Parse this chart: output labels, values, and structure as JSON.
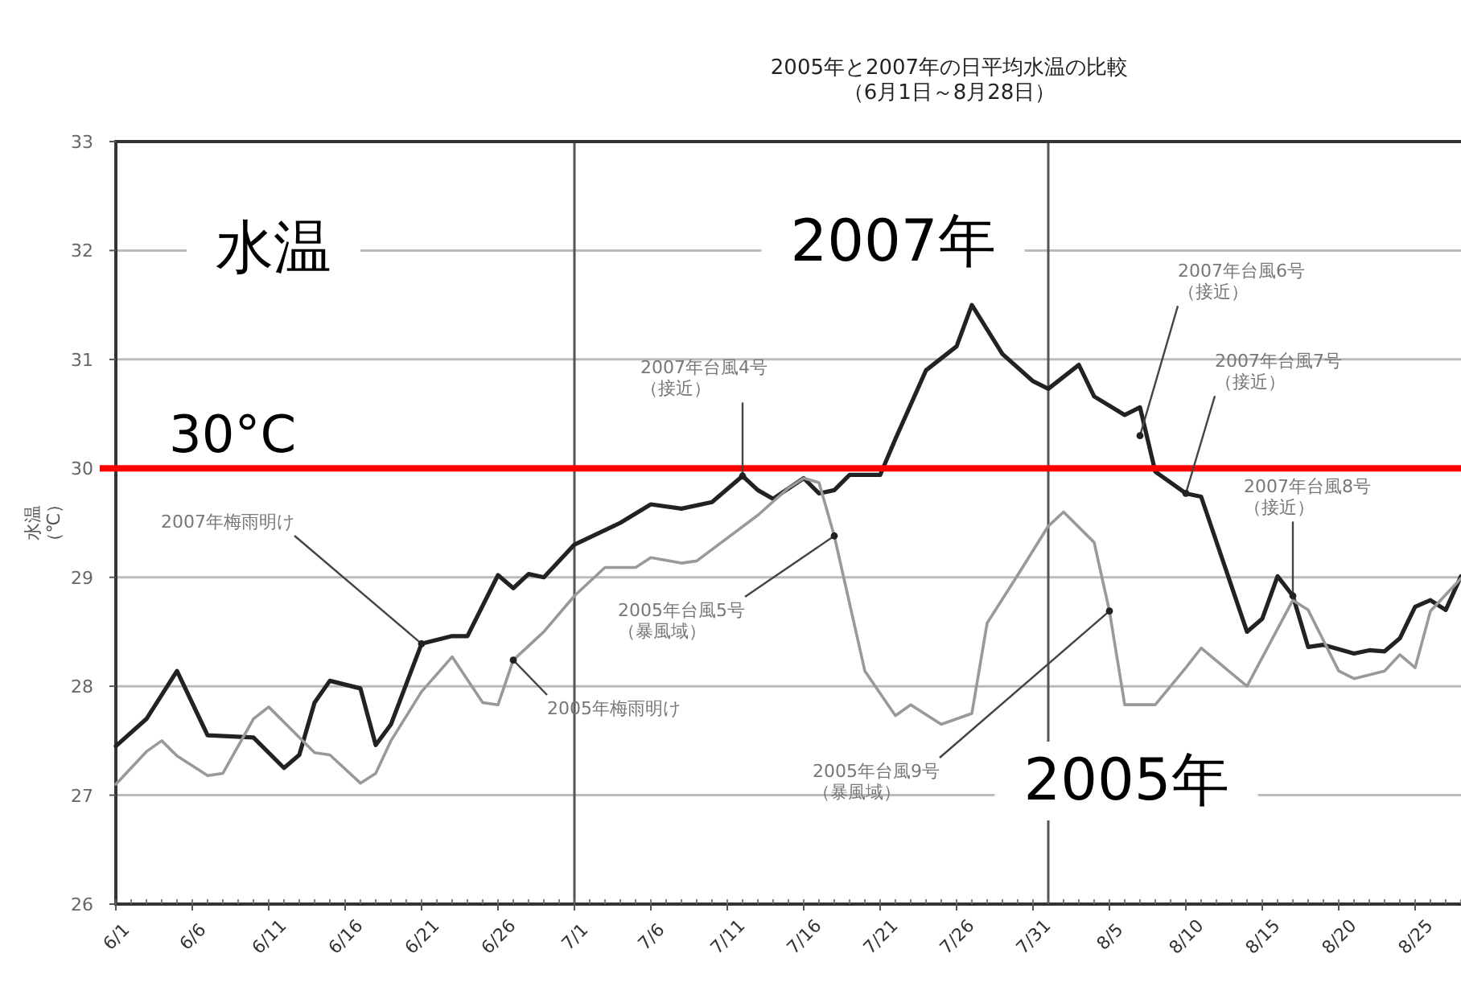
{
  "chart_data": {
    "type": "line",
    "title": "2005年と2007年の日平均水温の比較（6月1日～8月28日）",
    "ylabel": "水温（℃）",
    "ylim": [
      26,
      33
    ],
    "yticks": [
      26,
      27,
      28,
      29,
      30,
      31,
      32,
      33
    ],
    "xlim": [
      "--06-01",
      "--08-28"
    ],
    "xticks": [
      {
        "value": "--06-01",
        "label": "6/1"
      },
      {
        "value": "--06-06",
        "label": "6/6"
      },
      {
        "value": "--06-11",
        "label": "6/11"
      },
      {
        "value": "--06-16",
        "label": "6/16"
      },
      {
        "value": "--06-21",
        "label": "6/21"
      },
      {
        "value": "--06-26",
        "label": "6/26"
      },
      {
        "value": "--07-01",
        "label": "7/1"
      },
      {
        "value": "--07-06",
        "label": "7/6"
      },
      {
        "value": "--07-11",
        "label": "7/11"
      },
      {
        "value": "--07-16",
        "label": "7/16"
      },
      {
        "value": "--07-21",
        "label": "7/21"
      },
      {
        "value": "--07-26",
        "label": "7/26"
      },
      {
        "value": "--07-31",
        "label": "7/31"
      },
      {
        "value": "--08-05",
        "label": "8/5"
      },
      {
        "value": "--08-10",
        "label": "8/10"
      },
      {
        "value": "--08-15",
        "label": "8/15"
      },
      {
        "value": "--08-20",
        "label": "8/20"
      },
      {
        "value": "--08-25",
        "label": "8/25"
      }
    ],
    "grid": "y",
    "series": [
      {
        "name": "2007年",
        "color": "#222222",
        "x": [
          "--06-01",
          "--06-03",
          "--06-05",
          "--06-07",
          "--06-10",
          "--06-12",
          "--06-13",
          "--06-14",
          "--06-15",
          "--06-17",
          "--06-18",
          "--06-19",
          "--06-21",
          "--06-23",
          "--06-24",
          "--06-26",
          "--06-27",
          "--06-28",
          "--06-29",
          "--07-01",
          "--07-04",
          "--07-06",
          "--07-08",
          "--07-10",
          "--07-12",
          "--07-13",
          "--07-14",
          "--07-16",
          "--07-17",
          "--07-18",
          "--07-19",
          "--07-21",
          "--07-22",
          "--07-24",
          "--07-26",
          "--07-27",
          "--07-29",
          "--07-31",
          "--08-01",
          "--08-03",
          "--08-04",
          "--08-06",
          "--08-07",
          "--08-08",
          "--08-10",
          "--08-11",
          "--08-14",
          "--08-15",
          "--08-16",
          "--08-17",
          "--08-18",
          "--08-19",
          "--08-21",
          "--08-22",
          "--08-23",
          "--08-24",
          "--08-25",
          "--08-26",
          "--08-27",
          "--08-28"
        ],
        "values": [
          27.45,
          27.7,
          28.14,
          27.55,
          27.53,
          27.25,
          27.37,
          27.85,
          28.05,
          27.98,
          27.46,
          27.65,
          28.39,
          28.46,
          28.46,
          29.02,
          28.9,
          29.03,
          29.0,
          29.3,
          29.5,
          29.67,
          29.63,
          29.69,
          29.93,
          29.8,
          29.72,
          29.91,
          29.77,
          29.8,
          29.94,
          29.94,
          30.27,
          30.9,
          31.12,
          31.5,
          31.05,
          30.8,
          30.73,
          30.95,
          30.66,
          30.49,
          30.56,
          29.97,
          29.77,
          29.74,
          28.5,
          28.62,
          29.01,
          28.83,
          28.36,
          28.38,
          28.3,
          28.33,
          28.32,
          28.44,
          28.73,
          28.79,
          28.7,
          29.01
        ]
      },
      {
        "name": "2005年",
        "color": "#999999",
        "x": [
          "--06-01",
          "--06-03",
          "--06-04",
          "--06-05",
          "--06-07",
          "--06-08",
          "--06-10",
          "--06-11",
          "--06-14",
          "--06-15",
          "--06-17",
          "--06-18",
          "--06-19",
          "--06-21",
          "--06-23",
          "--06-25",
          "--06-26",
          "--06-27",
          "--06-29",
          "--07-01",
          "--07-03",
          "--07-05",
          "--07-06",
          "--07-08",
          "--07-09",
          "--07-13",
          "--07-15",
          "--07-16",
          "--07-17",
          "--07-18",
          "--07-20",
          "--07-22",
          "--07-23",
          "--07-25",
          "--07-27",
          "--07-28",
          "--07-30",
          "--08-01",
          "--08-02",
          "--08-04",
          "--08-05",
          "--08-06",
          "--08-08",
          "--08-10",
          "--08-11",
          "--08-14",
          "--08-17",
          "--08-18",
          "--08-20",
          "--08-21",
          "--08-23",
          "--08-24",
          "--08-25",
          "--08-26",
          "--08-28"
        ],
        "values": [
          27.1,
          27.4,
          27.5,
          27.36,
          27.18,
          27.2,
          27.7,
          27.81,
          27.39,
          27.37,
          27.11,
          27.2,
          27.5,
          27.95,
          28.27,
          27.85,
          27.83,
          28.24,
          28.5,
          28.83,
          29.09,
          29.09,
          29.18,
          29.13,
          29.15,
          29.57,
          29.82,
          29.91,
          29.87,
          29.38,
          28.14,
          27.73,
          27.83,
          27.65,
          27.75,
          28.58,
          29.02,
          29.47,
          29.6,
          29.32,
          28.69,
          27.83,
          27.83,
          28.17,
          28.35,
          28.0,
          28.79,
          28.7,
          28.14,
          28.07,
          28.14,
          28.29,
          28.17,
          28.69,
          28.99
        ]
      }
    ],
    "ref_lines": [
      {
        "axis": "y",
        "value": 30,
        "label": "30°C",
        "color": "#ff0000"
      },
      {
        "axis": "x",
        "value": "--07-01",
        "color": "#555555"
      },
      {
        "axis": "x",
        "value": "--08-01",
        "color": "#555555"
      }
    ],
    "annotations": [
      "水温",
      {
        "text": "2007年梅雨明け",
        "x": "--06-21",
        "y": 28.39
      },
      {
        "text": "2005年梅雨明け",
        "x": "--06-27",
        "y": 28.24
      },
      {
        "text": "2007年台風4号（接近）",
        "x": "--07-12",
        "y": 29.93
      },
      {
        "text": "2005年台風5号（暴風域）",
        "x": "--07-18",
        "y": 29.38
      },
      {
        "text": "2005年台風9号（暴風域）",
        "x": "--08-05",
        "y": 28.69
      },
      {
        "text": "2007年台風6号（接近）",
        "x": "--08-07",
        "y": 30.3
      },
      {
        "text": "2007年台風7号（接近）",
        "x": "--08-10",
        "y": 29.77
      },
      {
        "text": "2007年台風8号（接近）",
        "x": "--08-17",
        "y": 28.83
      }
    ]
  }
}
